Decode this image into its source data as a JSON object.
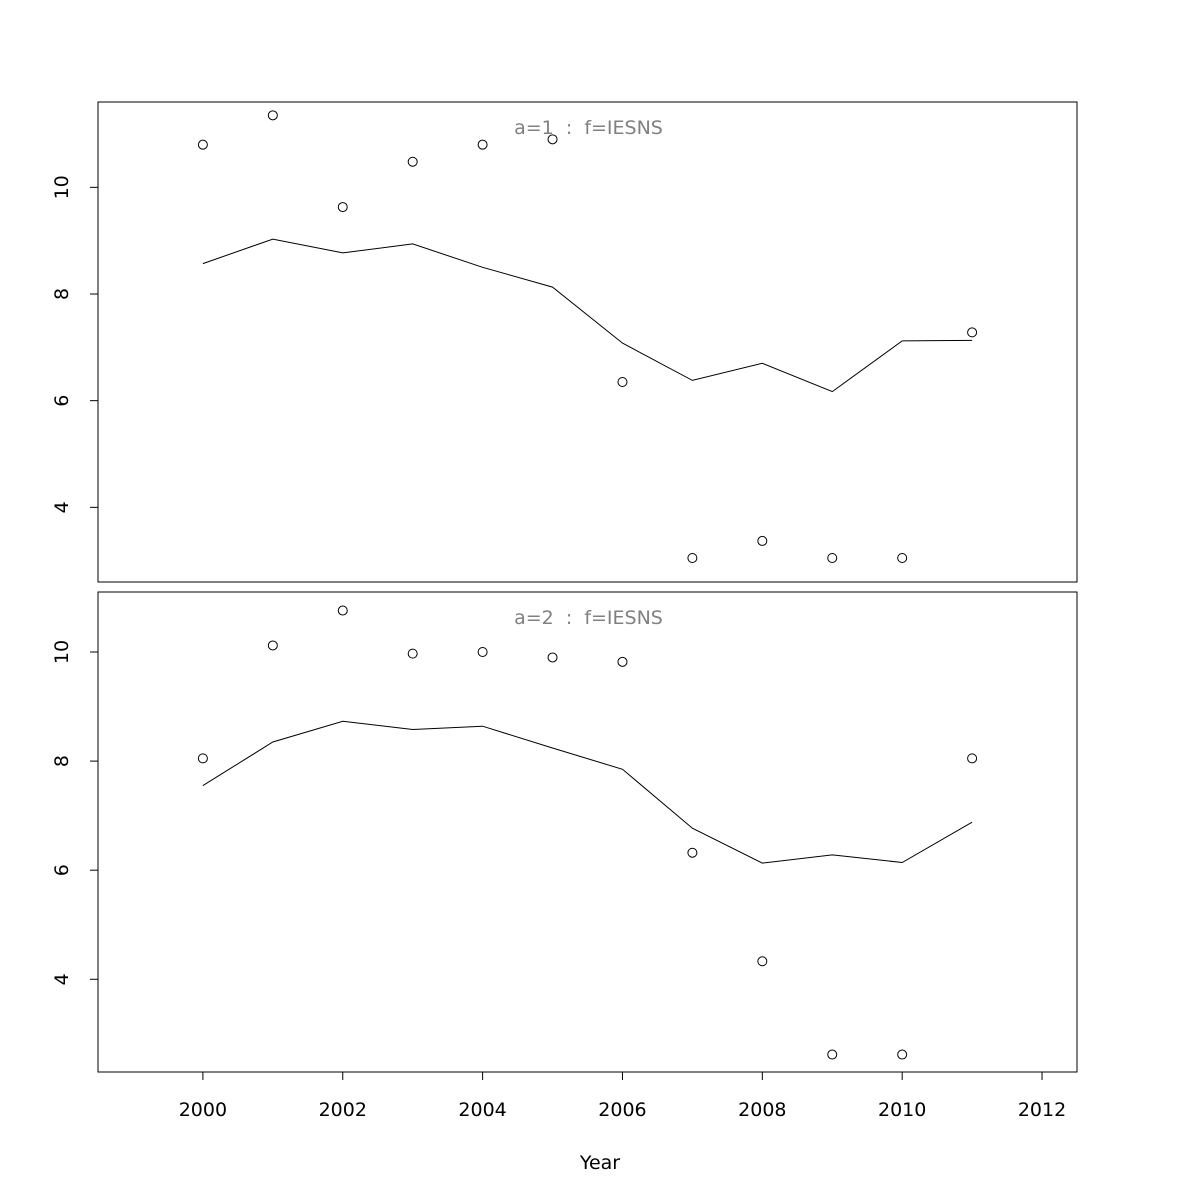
{
  "chart_data": [
    {
      "type": "scatter",
      "title": "a=1  :  f=IESNS",
      "xlabel": "",
      "ylabel": "",
      "xlim": [
        1998.5,
        2012.5
      ],
      "ylim": [
        2.6,
        11.6
      ],
      "yticks": [
        "4",
        "6",
        "8",
        "10"
      ],
      "grid": false,
      "series": [
        {
          "kind": "points",
          "x": [
            2000,
            2001,
            2002,
            2003,
            2004,
            2005,
            2006,
            2007,
            2008,
            2009,
            2010,
            2011
          ],
          "values": [
            10.8,
            11.35,
            9.63,
            10.48,
            10.8,
            10.9,
            6.35,
            3.05,
            3.37,
            3.05,
            3.05,
            7.28
          ]
        },
        {
          "kind": "line",
          "x": [
            2000,
            2001,
            2002,
            2003,
            2004,
            2005,
            2006,
            2007,
            2008,
            2009,
            2010,
            2011
          ],
          "values": [
            8.57,
            9.03,
            8.77,
            8.94,
            8.5,
            8.13,
            7.08,
            6.38,
            6.7,
            6.17,
            7.12,
            7.13
          ]
        }
      ]
    },
    {
      "type": "scatter",
      "title": "a=2  :  f=IESNS",
      "xlabel": "Year",
      "ylabel": "",
      "xlim": [
        1998.5,
        2012.5
      ],
      "ylim": [
        2.3,
        11.1
      ],
      "yticks": [
        "4",
        "6",
        "8",
        "10"
      ],
      "xticks": [
        "2000",
        "2002",
        "2004",
        "2006",
        "2008",
        "2010",
        "2012"
      ],
      "grid": false,
      "series": [
        {
          "kind": "points",
          "x": [
            2000,
            2001,
            2002,
            2003,
            2004,
            2005,
            2006,
            2007,
            2008,
            2009,
            2010,
            2011
          ],
          "values": [
            8.05,
            10.12,
            10.76,
            9.97,
            10.0,
            9.9,
            9.82,
            6.32,
            4.33,
            2.62,
            2.62,
            8.05
          ]
        },
        {
          "kind": "line",
          "x": [
            2000,
            2001,
            2002,
            2003,
            2004,
            2005,
            2006,
            2007,
            2008,
            2009,
            2010,
            2011
          ],
          "values": [
            7.55,
            8.35,
            8.73,
            8.58,
            8.64,
            8.24,
            7.85,
            6.77,
            6.13,
            6.28,
            6.14,
            6.88
          ]
        }
      ]
    }
  ]
}
